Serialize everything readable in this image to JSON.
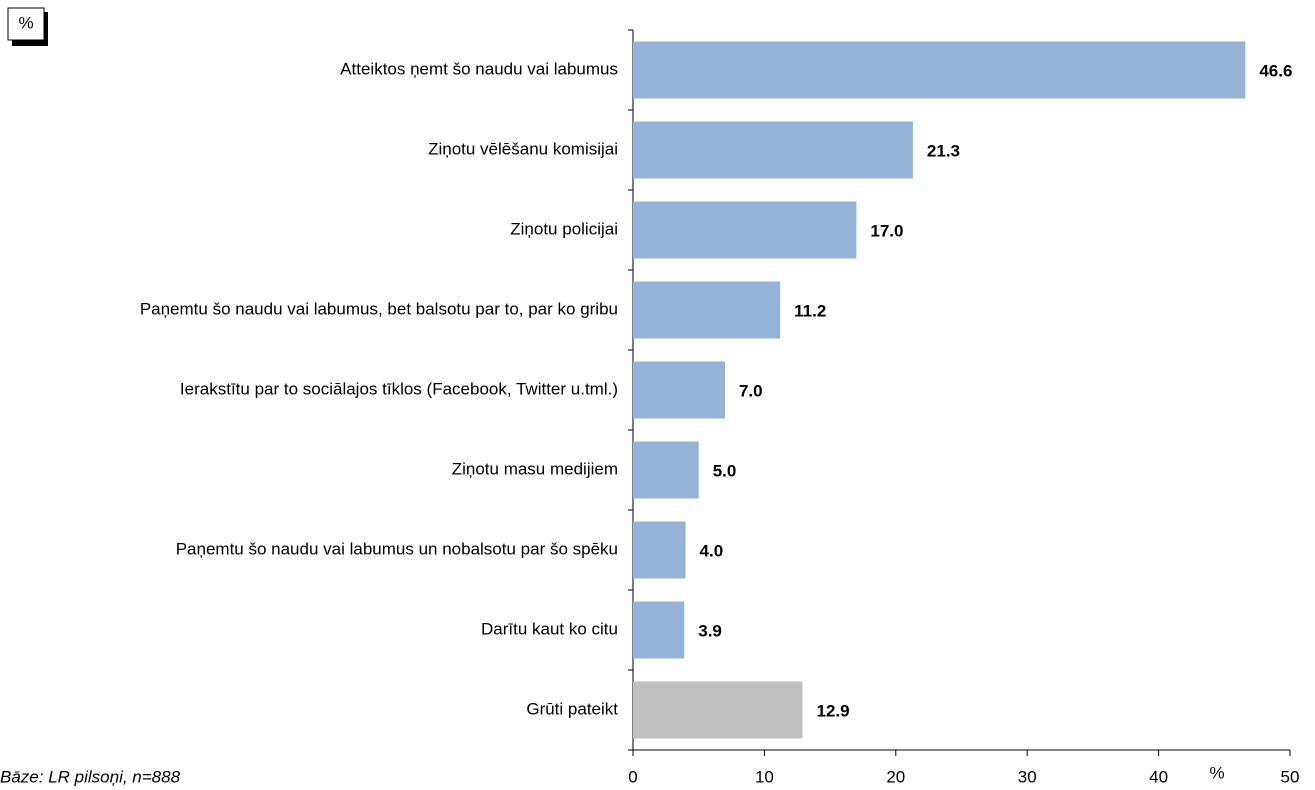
{
  "chart_data": {
    "type": "barh",
    "corner_label": "%",
    "footnote": "Bāze: LR pilsoņi, n=888",
    "xlabel": "%",
    "categories": [
      "Atteiktos ņemt šo naudu vai labumus",
      "Ziņotu vēlēšanu komisijai",
      "Ziņotu policijai",
      "Paņemtu šo naudu vai labumus, bet balsotu par to, par ko gribu",
      "Ierakstītu par to sociālajos tīklos (Facebook, Twitter u.tml.)",
      "Ziņotu masu medijiem",
      "Paņemtu šo naudu vai labumus un nobalsotu par šo spēku",
      "Darītu kaut ko citu",
      "Grūti pateikt"
    ],
    "values": [
      46.6,
      21.3,
      17,
      11.2,
      7,
      5,
      4,
      3.9,
      12.9
    ],
    "value_labels": [
      "46.6",
      "21.3",
      "17.0",
      "11.2",
      "7.0",
      "5.0",
      "4.0",
      "3.9",
      "12.9"
    ],
    "colors": [
      "#95b3d7",
      "#95b3d7",
      "#95b3d7",
      "#95b3d7",
      "#95b3d7",
      "#95b3d7",
      "#95b3d7",
      "#95b3d7",
      "#bfbfbf"
    ],
    "xlim": [
      0,
      50
    ],
    "xticks": [
      0,
      10,
      20,
      30,
      40,
      50
    ]
  }
}
